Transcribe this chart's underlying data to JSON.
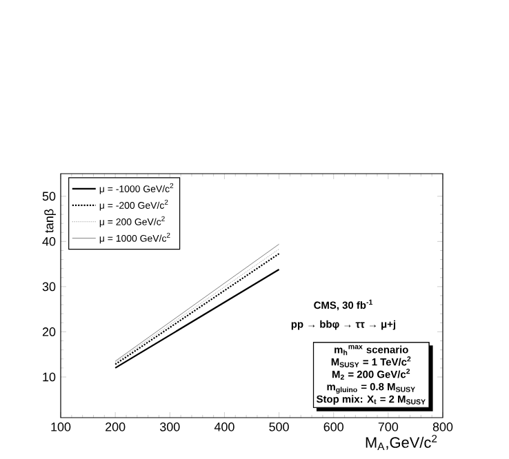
{
  "chart_data": {
    "type": "line",
    "xlabel": "M$_{A}$,GeV/c$^{2}$",
    "ylabel": "tanβ",
    "x": [
      200,
      500
    ],
    "series": [
      {
        "name": "μ = -1000 GeV/c$^{2}$",
        "color": "#000000",
        "line_style": "solid",
        "values": [
          12.0,
          33.8
        ]
      },
      {
        "name": "μ = -200 GeV/c$^{2}$",
        "color": "#000000",
        "line_style": "dotted",
        "values": [
          12.8,
          37.3
        ]
      },
      {
        "name": "μ = 200 GeV/c$^{2}$",
        "color": "#808080",
        "line_style": "dotted",
        "values": [
          13.2,
          38.3
        ]
      },
      {
        "name": "μ = 1000 GeV/c$^{2}$",
        "color": "#808080",
        "line_style": "solid",
        "values": [
          13.5,
          39.4
        ]
      }
    ],
    "xlim": [
      100,
      800
    ],
    "ylim": [
      1,
      55
    ],
    "xticks": [
      100,
      200,
      300,
      400,
      500,
      600,
      700,
      800
    ],
    "yticks": [
      10,
      20,
      30,
      40,
      50
    ],
    "grid": false,
    "legend": "top left",
    "marker": "none",
    "annotations": [
      "CMS, 30 fb$^{-1}$",
      "pp → bbφ → ττ → μ+j",
      "m$_{h}$$^{max}$ scenario",
      "M$_{SUSY}$ = 1 TeV/c$^{2}$",
      "M$_{2}$ = 200 GeV/c$^{2}$",
      "m$_{gluino}$ = 0.8 M$_{SUSY}$",
      "Stop mix: X$_{t}$ = 2 M$_{SUSY}$"
    ]
  }
}
